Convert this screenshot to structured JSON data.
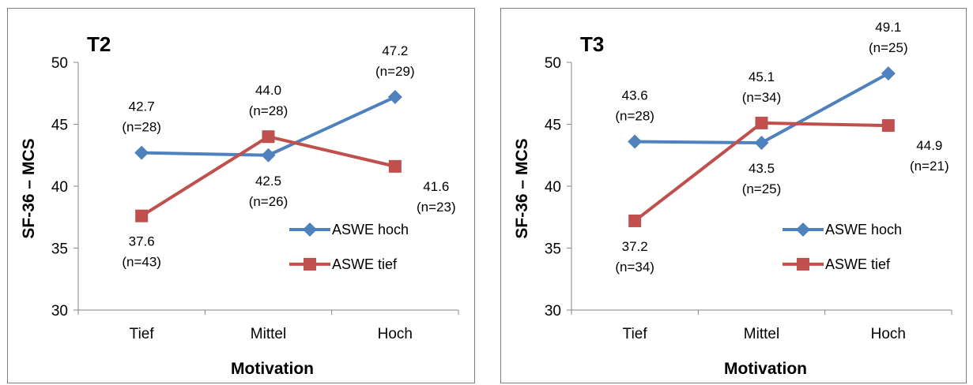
{
  "chart_data": [
    {
      "type": "line",
      "title": "T2",
      "xlabel": "Motivation",
      "ylabel": "SF-36 – MCS",
      "categories": [
        "Tief",
        "Mittel",
        "Hoch"
      ],
      "yticks": [
        "30",
        "35",
        "40",
        "45",
        "50"
      ],
      "ylim": [
        30,
        50
      ],
      "grid": false,
      "legend_position": "right",
      "series": [
        {
          "name": "ASWE hoch",
          "color": "#4f81bd",
          "marker": "diamond",
          "values": [
            42.7,
            42.5,
            47.2
          ],
          "value_labels": [
            "42.7",
            "42.5",
            "47.2"
          ],
          "n_labels": [
            "(n=28)",
            "(n=26)",
            "(n=29)"
          ],
          "label_pos": [
            "above",
            "below",
            "above"
          ]
        },
        {
          "name": "ASWE tief",
          "color": "#c0504d",
          "marker": "square",
          "values": [
            37.6,
            44.0,
            41.6
          ],
          "value_labels": [
            "37.6",
            "44.0",
            "41.6"
          ],
          "n_labels": [
            "(n=43)",
            "(n=28)",
            "(n=23)"
          ],
          "label_pos": [
            "below",
            "above",
            "below-right"
          ]
        }
      ]
    },
    {
      "type": "line",
      "title": "T3",
      "xlabel": "Motivation",
      "ylabel": "SF-36 – MCS",
      "categories": [
        "Tief",
        "Mittel",
        "Hoch"
      ],
      "yticks": [
        "30",
        "35",
        "40",
        "45",
        "50"
      ],
      "ylim": [
        30,
        50
      ],
      "grid": false,
      "legend_position": "right",
      "series": [
        {
          "name": "ASWE hoch",
          "color": "#4f81bd",
          "marker": "diamond",
          "values": [
            43.6,
            43.5,
            49.1
          ],
          "value_labels": [
            "43.6",
            "43.5",
            "49.1"
          ],
          "n_labels": [
            "(n=28)",
            "(n=25)",
            "(n=25)"
          ],
          "label_pos": [
            "above",
            "below",
            "above"
          ]
        },
        {
          "name": "ASWE tief",
          "color": "#c0504d",
          "marker": "square",
          "values": [
            37.2,
            45.1,
            44.9
          ],
          "value_labels": [
            "37.2",
            "45.1",
            "44.9"
          ],
          "n_labels": [
            "(n=34)",
            "(n=34)",
            "(n=21)"
          ],
          "label_pos": [
            "below",
            "above",
            "below-right"
          ]
        }
      ]
    }
  ]
}
